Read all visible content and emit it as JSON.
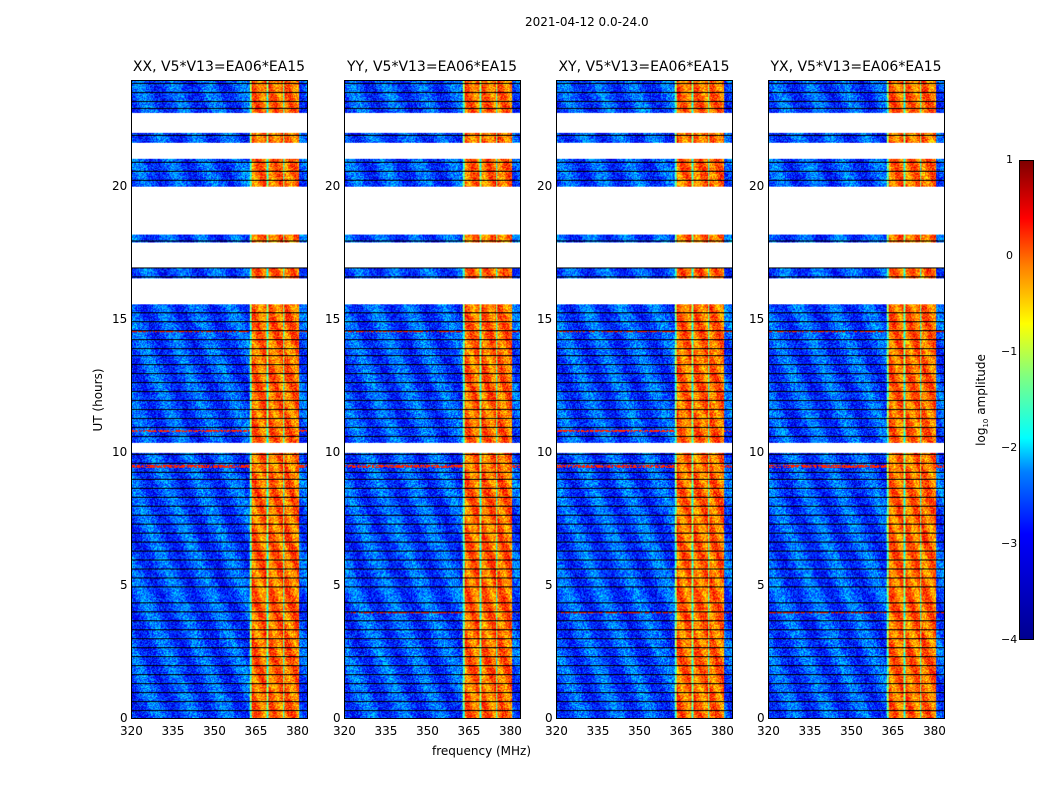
{
  "chart_data": {
    "type": "heatmap",
    "title": "2021-04-12 0.0-24.0",
    "xlabel": "frequency (MHz)",
    "ylabel": "UT (hours)",
    "xlim": [
      320,
      384
    ],
    "ylim": [
      0,
      24
    ],
    "xticks": [
      "320",
      "335",
      "350",
      "365",
      "380"
    ],
    "yticks": [
      "0",
      "5",
      "10",
      "15",
      "20"
    ],
    "panels": [
      {
        "title": "XX, V5*V13=EA06*EA15"
      },
      {
        "title": "YY, V5*V13=EA06*EA15"
      },
      {
        "title": "XY, V5*V13=EA06*EA15"
      },
      {
        "title": "YX, V5*V13=EA06*EA15"
      }
    ],
    "flagged_gaps_hours": [
      [
        22.05,
        22.8
      ],
      [
        21.1,
        21.7
      ],
      [
        18.25,
        20.05
      ],
      [
        17.0,
        17.95
      ],
      [
        15.6,
        16.6
      ],
      [
        10.0,
        10.4
      ]
    ],
    "bright_band_mhz": [
      363,
      381
    ],
    "band_level_log10": 0.0,
    "background_level_log10": -3.0,
    "colorbar": {
      "label": "log10 amplitude",
      "label_main": "log",
      "label_sub": "10",
      "label_tail": " amplitude",
      "range": [
        -4,
        1
      ],
      "ticks": [
        "1",
        "0",
        "−1",
        "−2",
        "−3",
        "−4"
      ],
      "colormap": "jet"
    }
  }
}
